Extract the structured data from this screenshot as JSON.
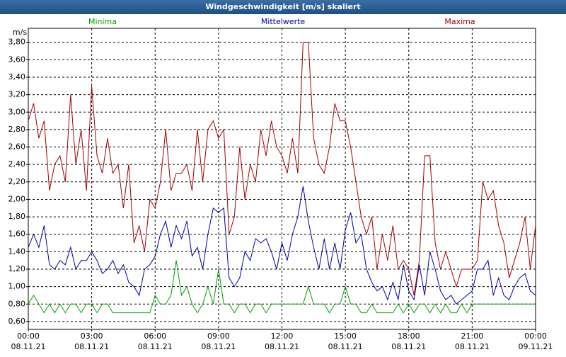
{
  "chart_data": {
    "type": "line",
    "title": "Windgeschwindigkeit [m/s] skaliert",
    "y_unit": "m/s",
    "x": [
      0,
      0.25,
      0.5,
      0.75,
      1,
      1.25,
      1.5,
      1.75,
      2,
      2.25,
      2.5,
      2.75,
      3,
      3.25,
      3.5,
      3.75,
      4,
      4.25,
      4.5,
      4.75,
      5,
      5.25,
      5.5,
      5.75,
      6,
      6.25,
      6.5,
      6.75,
      7,
      7.25,
      7.5,
      7.75,
      8,
      8.25,
      8.5,
      8.75,
      9,
      9.25,
      9.5,
      9.75,
      10,
      10.25,
      10.5,
      10.75,
      11,
      11.25,
      11.5,
      11.75,
      12,
      12.25,
      12.5,
      12.75,
      13,
      13.25,
      13.5,
      13.75,
      14,
      14.25,
      14.5,
      14.75,
      15,
      15.25,
      15.5,
      15.75,
      16,
      16.25,
      16.5,
      16.75,
      17,
      17.25,
      17.5,
      17.75,
      18,
      18.25,
      18.5,
      18.75,
      19,
      19.25,
      19.5,
      19.75,
      20,
      20.25,
      20.5,
      20.75,
      21,
      21.25,
      21.5,
      21.75,
      22,
      22.25,
      22.5,
      22.75,
      23,
      23.25,
      23.5,
      23.75,
      24
    ],
    "series": [
      {
        "name": "Minima",
        "color": "#00a000",
        "values": [
          0.8,
          0.9,
          0.8,
          0.7,
          0.8,
          0.7,
          0.8,
          0.7,
          0.8,
          0.8,
          0.7,
          0.8,
          0.8,
          0.7,
          0.8,
          0.8,
          0.7,
          0.7,
          0.7,
          0.7,
          0.7,
          0.7,
          0.7,
          0.7,
          0.9,
          0.8,
          0.8,
          0.9,
          1.3,
          0.9,
          1.0,
          0.8,
          0.7,
          0.8,
          1.0,
          0.8,
          1.2,
          0.8,
          0.8,
          0.7,
          0.8,
          0.8,
          0.7,
          0.8,
          0.8,
          0.7,
          0.8,
          0.8,
          0.8,
          0.8,
          0.8,
          0.8,
          0.8,
          1.0,
          0.8,
          0.8,
          0.8,
          0.7,
          0.8,
          0.8,
          1.0,
          0.8,
          0.8,
          0.7,
          0.7,
          0.8,
          0.7,
          0.7,
          0.7,
          0.7,
          0.8,
          0.7,
          0.8,
          0.7,
          0.8,
          0.8,
          0.7,
          0.8,
          0.7,
          0.8,
          0.7,
          0.7,
          0.8,
          0.7,
          0.8,
          0.8,
          0.8,
          0.8,
          0.8,
          0.8,
          0.8,
          0.8,
          0.8,
          0.8,
          0.8,
          0.8,
          0.8
        ]
      },
      {
        "name": "Mittelwerte",
        "color": "#0000a0",
        "values": [
          1.45,
          1.6,
          1.45,
          1.7,
          1.25,
          1.2,
          1.3,
          1.25,
          1.45,
          1.2,
          1.3,
          1.3,
          1.4,
          1.3,
          1.15,
          1.2,
          1.3,
          1.15,
          1.25,
          1.05,
          1.0,
          0.9,
          1.2,
          1.25,
          1.35,
          1.6,
          1.75,
          1.45,
          1.7,
          1.55,
          1.75,
          1.35,
          1.45,
          1.2,
          1.6,
          1.9,
          1.85,
          1.9,
          1.1,
          1.0,
          1.1,
          1.4,
          1.3,
          1.55,
          1.5,
          1.55,
          1.4,
          1.2,
          1.5,
          1.3,
          1.6,
          1.8,
          2.15,
          1.75,
          1.45,
          1.2,
          1.55,
          1.2,
          1.5,
          1.2,
          1.65,
          1.85,
          1.5,
          1.6,
          1.2,
          1.05,
          0.95,
          1.0,
          0.85,
          1.05,
          0.85,
          1.25,
          0.95,
          0.85,
          1.25,
          0.9,
          1.4,
          1.2,
          0.95,
          0.85,
          0.9,
          0.8,
          0.85,
          0.9,
          0.95,
          1.2,
          1.2,
          1.3,
          0.9,
          1.1,
          0.9,
          0.85,
          1.0,
          1.1,
          1.15,
          0.95,
          0.9
        ]
      },
      {
        "name": "Maxima",
        "color": "#a00000",
        "values": [
          2.9,
          3.1,
          2.7,
          2.9,
          2.1,
          2.4,
          2.5,
          2.2,
          3.2,
          2.4,
          2.8,
          2.1,
          3.3,
          2.5,
          2.3,
          2.7,
          2.3,
          2.4,
          1.9,
          2.4,
          1.5,
          1.7,
          1.4,
          2.0,
          1.9,
          2.2,
          2.8,
          2.1,
          2.3,
          2.3,
          2.4,
          2.1,
          2.8,
          2.2,
          2.8,
          2.9,
          2.7,
          2.8,
          1.6,
          1.8,
          2.6,
          2.0,
          2.4,
          2.2,
          2.8,
          2.5,
          2.9,
          2.6,
          2.5,
          2.3,
          2.7,
          2.3,
          3.8,
          3.8,
          2.7,
          2.4,
          2.3,
          2.6,
          3.1,
          2.9,
          2.9,
          2.6,
          2.2,
          1.8,
          1.6,
          1.8,
          1.2,
          1.6,
          1.3,
          1.7,
          1.2,
          1.3,
          1.2,
          0.9,
          1.3,
          2.5,
          2.5,
          1.5,
          1.2,
          1.4,
          1.2,
          1.0,
          1.2,
          1.2,
          1.2,
          1.3,
          2.2,
          2.0,
          2.1,
          1.7,
          1.5,
          1.1,
          1.3,
          1.5,
          1.8,
          1.2,
          1.7
        ]
      }
    ],
    "xlim": [
      0,
      24
    ],
    "xticks": [
      {
        "value": 0,
        "label": "00:00"
      },
      {
        "value": 3,
        "label": "03:00"
      },
      {
        "value": 6,
        "label": "06:00"
      },
      {
        "value": 9,
        "label": "09:00"
      },
      {
        "value": 12,
        "label": "12:00"
      },
      {
        "value": 15,
        "label": "15:00"
      },
      {
        "value": 18,
        "label": "18:00"
      },
      {
        "value": 21,
        "label": "21:00"
      },
      {
        "value": 24,
        "label": "00:00"
      }
    ],
    "xtick_dates": [
      "08.11.21",
      "08.11.21",
      "08.11.21",
      "08.11.21",
      "08.11.21",
      "08.11.21",
      "08.11.21",
      "08.11.21",
      "09.11.21"
    ],
    "ylim": [
      0.51,
      3.96
    ],
    "yticks": [
      {
        "value": 0.6,
        "label": "0,60"
      },
      {
        "value": 0.8,
        "label": "0,80"
      },
      {
        "value": 1.0,
        "label": "1,00"
      },
      {
        "value": 1.2,
        "label": "1,20"
      },
      {
        "value": 1.4,
        "label": "1,40"
      },
      {
        "value": 1.6,
        "label": "1,60"
      },
      {
        "value": 1.8,
        "label": "1,80"
      },
      {
        "value": 2.0,
        "label": "2,00"
      },
      {
        "value": 2.2,
        "label": "2,20"
      },
      {
        "value": 2.4,
        "label": "2,40"
      },
      {
        "value": 2.6,
        "label": "2,60"
      },
      {
        "value": 2.8,
        "label": "2,80"
      },
      {
        "value": 3.0,
        "label": "3,00"
      },
      {
        "value": 3.2,
        "label": "3,20"
      },
      {
        "value": 3.4,
        "label": "3,40"
      },
      {
        "value": 3.6,
        "label": "3,60"
      },
      {
        "value": 3.8,
        "label": "3,80"
      }
    ],
    "grid": true
  }
}
